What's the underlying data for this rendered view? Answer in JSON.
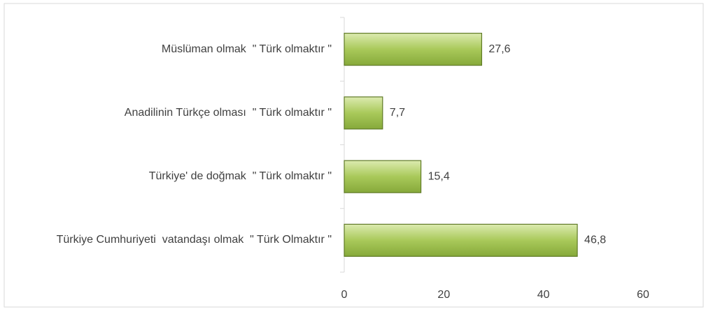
{
  "chart_data": {
    "type": "bar",
    "orientation": "horizontal",
    "categories": [
      "Müslüman olmak  \" Türk olmaktır \"",
      "Anadilinin Türkçe olması  \" Türk olmaktır \"",
      "Türkiye' de doğmak  \" Türk olmaktır \"",
      "Türkiye Cumhuriyeti  vatandaşı olmak  \" Türk Olmaktır \""
    ],
    "values": [
      27.6,
      7.7,
      15.4,
      46.8
    ],
    "value_labels": [
      "27,6",
      "7,7",
      "15,4",
      "46,8"
    ],
    "color": "#9bbb45",
    "xlim": [
      0,
      60
    ],
    "xticks": [
      0,
      20,
      40,
      60
    ],
    "grid": false
  }
}
